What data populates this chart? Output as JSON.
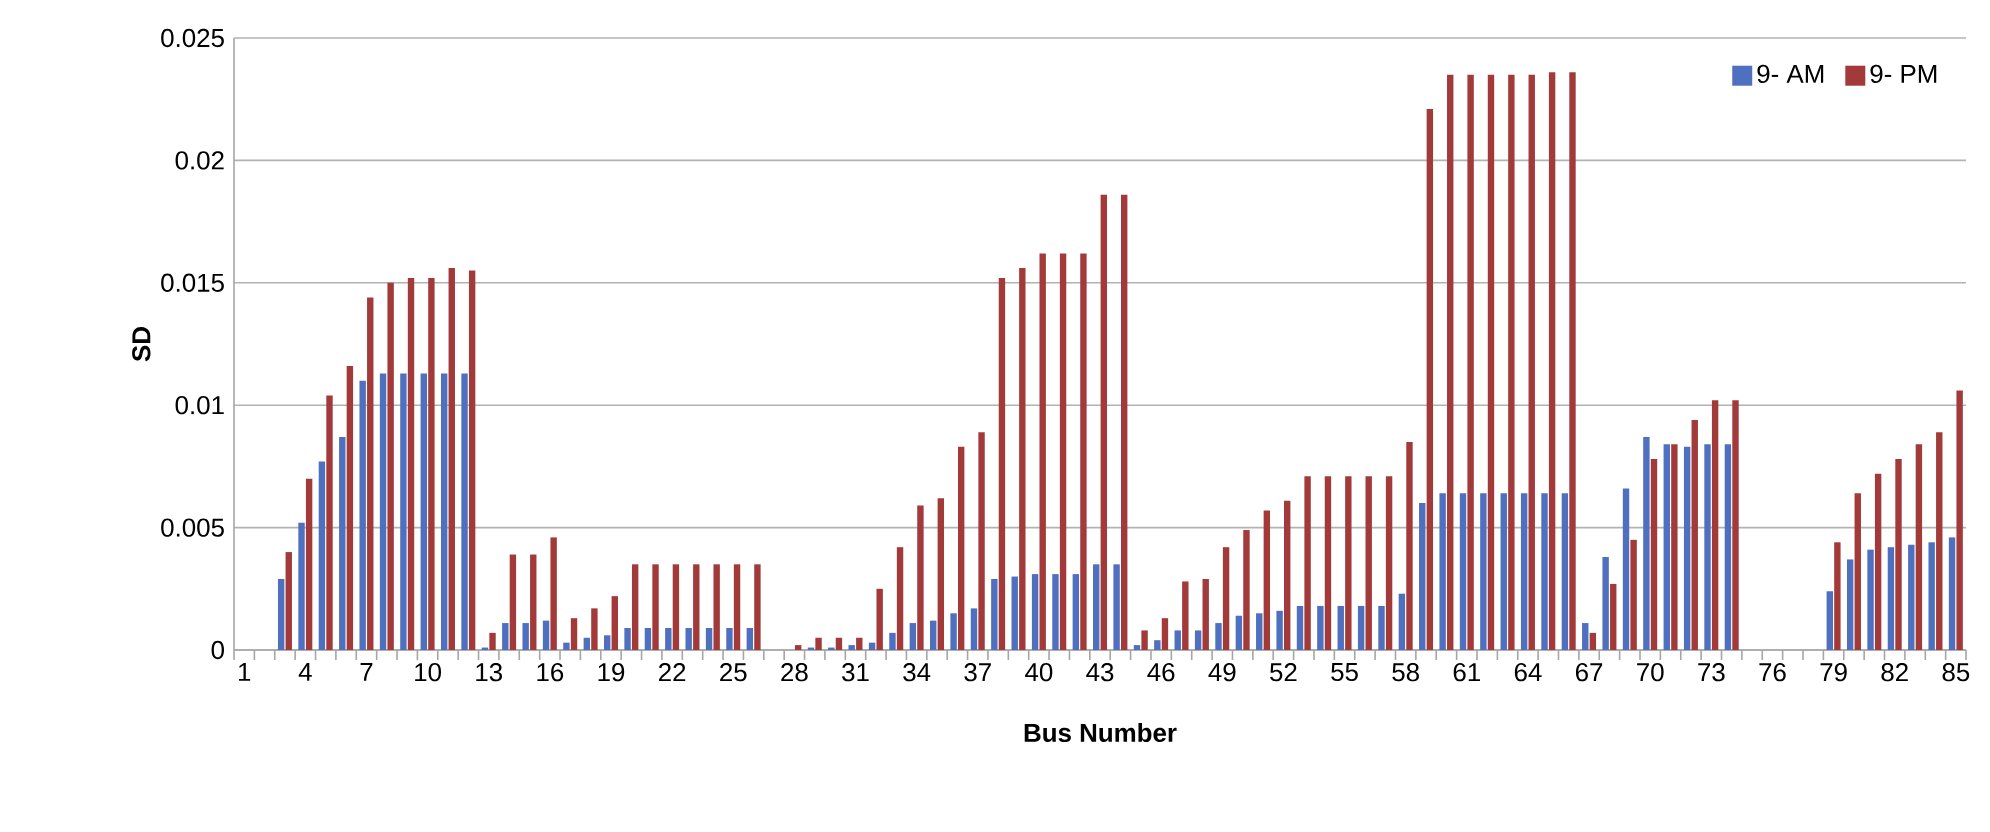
{
  "chart_data": {
    "type": "bar",
    "xlabel": "Bus Number",
    "ylabel": "SD",
    "categories": [
      "1",
      null,
      null,
      "4",
      null,
      null,
      "7",
      null,
      null,
      "10",
      null,
      null,
      "13",
      null,
      null,
      "16",
      null,
      null,
      "19",
      null,
      null,
      "22",
      null,
      null,
      "25",
      null,
      null,
      "28",
      null,
      null,
      "31",
      null,
      null,
      "34",
      null,
      null,
      "37",
      null,
      null,
      "40",
      null,
      null,
      "43",
      null,
      null,
      "46",
      null,
      null,
      "49",
      null,
      null,
      "52",
      null,
      null,
      "55",
      null,
      null,
      "58",
      null,
      null,
      "61",
      null,
      null,
      "64",
      null,
      null,
      "67",
      null,
      null,
      "70",
      null,
      null,
      "73",
      null,
      null,
      "76",
      null,
      null,
      "79",
      null,
      null,
      "82",
      null,
      null,
      "85"
    ],
    "series": [
      {
        "name": "9- AM",
        "color": "#4f6fbf",
        "values": [
          0,
          0,
          0.0029,
          0.0052,
          0.0077,
          0.0087,
          0.011,
          0.0113,
          0.0113,
          0.0113,
          0.0113,
          0.0113,
          0.0001,
          0.0011,
          0.0011,
          0.0012,
          0.0003,
          0.0005,
          0.0006,
          0.0009,
          0.0009,
          0.0009,
          0.0009,
          0.0009,
          0.0009,
          0.0009,
          0,
          0,
          0.0001,
          0.0001,
          0.0002,
          0.0003,
          0.0007,
          0.0011,
          0.0012,
          0.0015,
          0.0017,
          0.0029,
          0.003,
          0.0031,
          0.0031,
          0.0031,
          0.0035,
          0.0035,
          0.0002,
          0.0004,
          0.0008,
          0.0008,
          0.0011,
          0.0014,
          0.0015,
          0.0016,
          0.0018,
          0.0018,
          0.0018,
          0.0018,
          0.0018,
          0.0023,
          0.006,
          0.0064,
          0.0064,
          0.0064,
          0.0064,
          0.0064,
          0.0064,
          0.0064,
          0.0011,
          0.0038,
          0.0066,
          0.0087,
          0.0084,
          0.0083,
          0.0084,
          0.0084,
          0,
          0,
          0,
          0,
          0.0024,
          0.0037,
          0.0041,
          0.0042,
          0.0043,
          0.0044,
          0.0046
        ]
      },
      {
        "name": "9- PM",
        "color": "#a33a3a",
        "values": [
          0,
          0,
          0.004,
          0.007,
          0.0104,
          0.0116,
          0.0144,
          0.015,
          0.0152,
          0.0152,
          0.0156,
          0.0155,
          0.0007,
          0.0039,
          0.0039,
          0.0046,
          0.0013,
          0.0017,
          0.0022,
          0.0035,
          0.0035,
          0.0035,
          0.0035,
          0.0035,
          0.0035,
          0.0035,
          0,
          0.0002,
          0.0005,
          0.0005,
          0.0005,
          0.0025,
          0.0042,
          0.0059,
          0.0062,
          0.0083,
          0.0089,
          0.0152,
          0.0156,
          0.0162,
          0.0162,
          0.0162,
          0.0186,
          0.0186,
          0.0008,
          0.0013,
          0.0028,
          0.0029,
          0.0042,
          0.0049,
          0.0057,
          0.0061,
          0.0071,
          0.0071,
          0.0071,
          0.0071,
          0.0071,
          0.0085,
          0.0221,
          0.0235,
          0.0235,
          0.0235,
          0.0235,
          0.0235,
          0.0236,
          0.0236,
          0.0007,
          0.0027,
          0.0045,
          0.0078,
          0.0084,
          0.0094,
          0.0102,
          0.0102,
          0,
          0,
          0,
          0,
          0.0044,
          0.0064,
          0.0072,
          0.0078,
          0.0084,
          0.0089,
          0.0106
        ]
      }
    ],
    "ylim": [
      0,
      0.025
    ],
    "yticks": [
      0,
      0.005,
      0.01,
      0.015,
      0.02,
      0.025
    ],
    "grid": "y",
    "legend": "top right"
  }
}
